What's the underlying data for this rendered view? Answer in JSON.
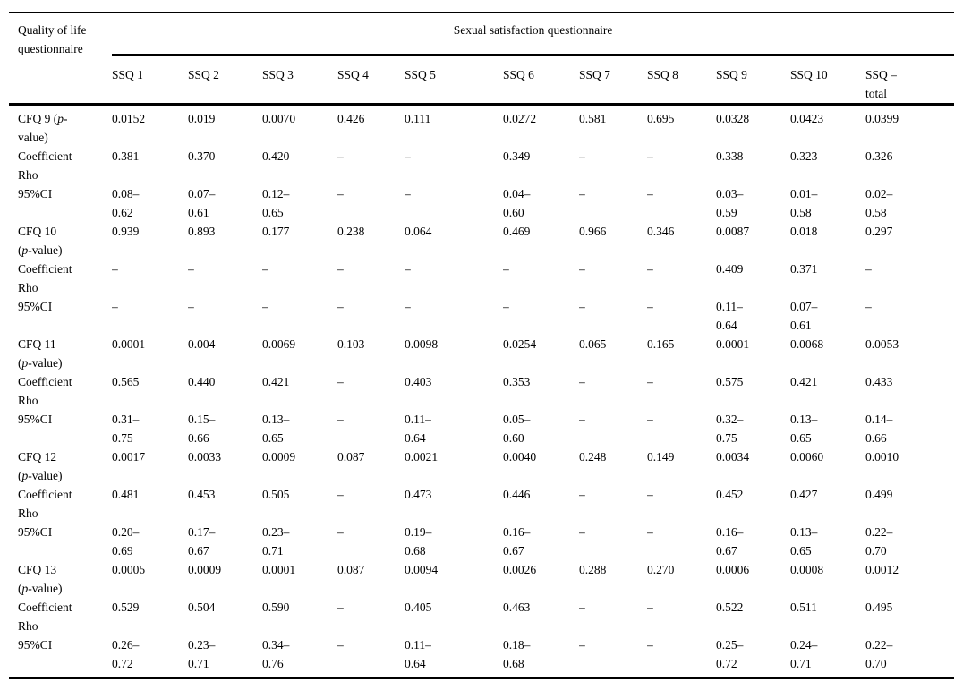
{
  "colors": {
    "text": "#000000",
    "background": "#ffffff",
    "rule": "#000000"
  },
  "table": {
    "corner_header": "Quality of life\nquestionnaire",
    "group_header": "Sexual satisfaction questionnaire",
    "columns": [
      "SSQ 1",
      "SSQ 2",
      "SSQ 3",
      "SSQ 4",
      "SSQ 5",
      "SSQ 6",
      "SSQ 7",
      "SSQ 8",
      "SSQ 9",
      "SSQ 10",
      "SSQ –\ntotal"
    ],
    "rows": [
      {
        "label": [
          {
            "t": "CFQ 9 (",
            "i": false
          },
          {
            "t": "p",
            "i": true
          },
          {
            "t": "-\nvalue)",
            "i": false
          }
        ],
        "values": [
          "0.0152",
          "0.019",
          "0.0070",
          "0.426",
          "0.111",
          "0.0272",
          "0.581",
          "0.695",
          "0.0328",
          "0.0423",
          "0.0399"
        ]
      },
      {
        "label": [
          {
            "t": "Coefficient\nRho",
            "i": false
          }
        ],
        "values": [
          "0.381",
          "0.370",
          "0.420",
          "–",
          "–",
          "0.349",
          "–",
          "–",
          "0.338",
          "0.323",
          "0.326"
        ]
      },
      {
        "label": [
          {
            "t": "95%CI",
            "i": false
          }
        ],
        "values": [
          "0.08–\n0.62",
          "0.07–\n0.61",
          "0.12–\n0.65",
          "–",
          "–",
          "0.04–\n0.60",
          "–",
          "–",
          "0.03–\n0.59",
          "0.01–\n0.58",
          "0.02–\n0.58"
        ]
      },
      {
        "label": [
          {
            "t": "CFQ 10\n(",
            "i": false
          },
          {
            "t": "p",
            "i": true
          },
          {
            "t": "-value)",
            "i": false
          }
        ],
        "values": [
          "0.939",
          "0.893",
          "0.177",
          "0.238",
          "0.064",
          "0.469",
          "0.966",
          "0.346",
          "0.0087",
          "0.018",
          "0.297"
        ]
      },
      {
        "label": [
          {
            "t": "Coefficient\nRho",
            "i": false
          }
        ],
        "values": [
          "–",
          "–",
          "–",
          "–",
          "–",
          "–",
          "–",
          "–",
          "0.409",
          "0.371",
          "–"
        ]
      },
      {
        "label": [
          {
            "t": "95%CI",
            "i": false
          }
        ],
        "values": [
          "–",
          "–",
          "–",
          "–",
          "–",
          "–",
          "–",
          "–",
          "0.11–\n0.64",
          "0.07–\n0.61",
          "–"
        ]
      },
      {
        "label": [
          {
            "t": "CFQ 11\n(",
            "i": false
          },
          {
            "t": "p",
            "i": true
          },
          {
            "t": "-value)",
            "i": false
          }
        ],
        "values": [
          "0.0001",
          "0.004",
          "0.0069",
          "0.103",
          "0.0098",
          "0.0254",
          "0.065",
          "0.165",
          "0.0001",
          "0.0068",
          "0.0053"
        ]
      },
      {
        "label": [
          {
            "t": "Coefficient\nRho",
            "i": false
          }
        ],
        "values": [
          "0.565",
          "0.440",
          "0.421",
          "–",
          "0.403",
          "0.353",
          "–",
          "–",
          "0.575",
          "0.421",
          "0.433"
        ]
      },
      {
        "label": [
          {
            "t": "95%CI",
            "i": false
          }
        ],
        "values": [
          "0.31–\n0.75",
          "0.15–\n0.66",
          "0.13–\n0.65",
          "–",
          "0.11–\n0.64",
          "0.05–\n0.60",
          "–",
          "–",
          "0.32–\n0.75",
          "0.13–\n0.65",
          "0.14–\n0.66"
        ]
      },
      {
        "label": [
          {
            "t": "CFQ 12\n(",
            "i": false
          },
          {
            "t": "p",
            "i": true
          },
          {
            "t": "-value)",
            "i": false
          }
        ],
        "values": [
          "0.0017",
          "0.0033",
          "0.0009",
          "0.087",
          "0.0021",
          "0.0040",
          "0.248",
          "0.149",
          "0.0034",
          "0.0060",
          "0.0010"
        ]
      },
      {
        "label": [
          {
            "t": "Coefficient\nRho",
            "i": false
          }
        ],
        "values": [
          "0.481",
          "0.453",
          "0.505",
          "–",
          "0.473",
          "0.446",
          "–",
          "–",
          "0.452",
          "0.427",
          "0.499"
        ]
      },
      {
        "label": [
          {
            "t": "95%CI",
            "i": false
          }
        ],
        "values": [
          "0.20–\n0.69",
          "0.17–\n0.67",
          "0.23–\n0.71",
          "–",
          "0.19–\n0.68",
          "0.16–\n0.67",
          "–",
          "–",
          "0.16–\n0.67",
          "0.13–\n0.65",
          "0.22–\n0.70"
        ]
      },
      {
        "label": [
          {
            "t": "CFQ 13\n(",
            "i": false
          },
          {
            "t": "p",
            "i": true
          },
          {
            "t": "-value)",
            "i": false
          }
        ],
        "values": [
          "0.0005",
          "0.0009",
          "0.0001",
          "0.087",
          "0.0094",
          "0.0026",
          "0.288",
          "0.270",
          "0.0006",
          "0.0008",
          "0.0012"
        ]
      },
      {
        "label": [
          {
            "t": "Coefficient\nRho",
            "i": false
          }
        ],
        "values": [
          "0.529",
          "0.504",
          "0.590",
          "–",
          "0.405",
          "0.463",
          "–",
          "–",
          "0.522",
          "0.511",
          "0.495"
        ]
      },
      {
        "label": [
          {
            "t": "95%CI",
            "i": false
          }
        ],
        "values": [
          "0.26–\n0.72",
          "0.23–\n0.71",
          "0.34–\n0.76",
          "–",
          "0.11–\n0.64",
          "0.18–\n0.68",
          "–",
          "–",
          "0.25–\n0.72",
          "0.24–\n0.71",
          "0.22–\n0.70"
        ]
      }
    ]
  }
}
